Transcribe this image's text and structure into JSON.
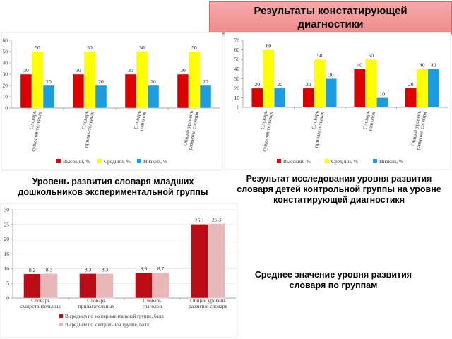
{
  "page_title": "Результаты констатирующей диагностики",
  "captions": {
    "chart1": "Уровень развития словаря младших дошкольников экспериментальной группы",
    "chart2": "Результат исследования уровня развития словаря детей контрольной группы на уровне констатирующей диагностикя",
    "chart3": "Среднее значение уровня развития словаря по группам"
  },
  "colors": {
    "red": "#dd0000",
    "yellow": "#ffff00",
    "blue": "#1e9ce0",
    "darkred": "#bb0d16",
    "pink": "#e8b8b8"
  },
  "chart_data": [
    {
      "type": "bar",
      "categories": [
        "Словарь существительных",
        "Словарь прилагательных",
        "Словарь глаголов",
        "Общий уровень развития словаря"
      ],
      "series": [
        {
          "name": "Высокий, %",
          "values": [
            30,
            30,
            30,
            30
          ]
        },
        {
          "name": "Средний, %",
          "values": [
            50,
            50,
            50,
            50
          ]
        },
        {
          "name": "Низкий, %",
          "values": [
            20,
            20,
            20,
            20
          ]
        }
      ],
      "ylim": [
        0,
        60
      ],
      "yticks": [
        "0",
        "10",
        "20",
        "30",
        "40",
        "50",
        "60"
      ],
      "legend_position": "bottom"
    },
    {
      "type": "bar",
      "categories": [
        "Словарь существительных",
        "Словарь прилагательных",
        "Словарь глаголов",
        "Общий уровень развития словаря"
      ],
      "series": [
        {
          "name": "Высокий, %",
          "values": [
            20,
            20,
            40,
            20
          ]
        },
        {
          "name": "Средний, %",
          "values": [
            60,
            50,
            50,
            40
          ]
        },
        {
          "name": "Низкий, %",
          "values": [
            20,
            30,
            10,
            40
          ]
        }
      ],
      "ylim": [
        0,
        70
      ],
      "yticks": [
        "0",
        "10",
        "20",
        "30",
        "40",
        "50",
        "60",
        "70"
      ],
      "legend_position": "bottom"
    },
    {
      "type": "bar",
      "categories": [
        "Словарь существительных",
        "Словарь прилагательных",
        "Словарь глаголов",
        "Общий уровень развития словаря"
      ],
      "series": [
        {
          "name": "В среднем по экспериментальной группе, балл",
          "values": [
            8.2,
            8.3,
            8.6,
            25.1
          ]
        },
        {
          "name": "В среднем по контрольной группе, балл",
          "values": [
            8.3,
            8.3,
            8.7,
            25.3
          ]
        }
      ],
      "data_labels": [
        [
          "8,2",
          "8,3",
          "8,6",
          "25,1"
        ],
        [
          "8,3",
          "8,3",
          "8,7",
          "25,3"
        ]
      ],
      "ylim": [
        0,
        30
      ],
      "yticks": [
        "0",
        "5",
        "10",
        "16",
        "20",
        "25",
        "30"
      ],
      "legend_position": "bottom"
    }
  ]
}
